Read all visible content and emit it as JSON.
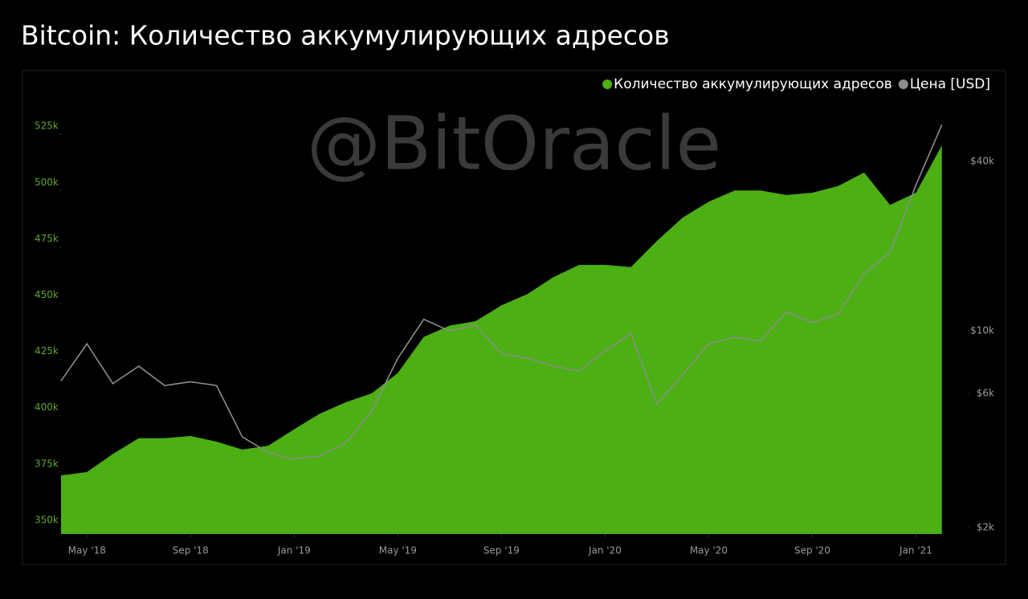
{
  "chart_data": {
    "type": "line",
    "title": "Bitcoin: Количество аккумулирующих адресов",
    "watermark": "@BitOracle",
    "x": [
      "2018-04",
      "2018-05",
      "2018-06",
      "2018-07",
      "2018-08",
      "2018-09",
      "2018-10",
      "2018-11",
      "2018-12",
      "2019-01",
      "2019-02",
      "2019-03",
      "2019-04",
      "2019-05",
      "2019-06",
      "2019-07",
      "2019-08",
      "2019-09",
      "2019-10",
      "2019-11",
      "2019-12",
      "2020-01",
      "2020-02",
      "2020-03",
      "2020-04",
      "2020-05",
      "2020-06",
      "2020-07",
      "2020-08",
      "2020-09",
      "2020-10",
      "2020-11",
      "2020-12",
      "2021-01",
      "2021-02"
    ],
    "xlim": [
      "2018-04",
      "2021-03"
    ],
    "xticks": [
      {
        "value": "2018-05",
        "label": "May '18"
      },
      {
        "value": "2018-09",
        "label": "Sep '18"
      },
      {
        "value": "2019-01",
        "label": "Jan '19"
      },
      {
        "value": "2019-05",
        "label": "May '19"
      },
      {
        "value": "2019-09",
        "label": "Sep '19"
      },
      {
        "value": "2020-01",
        "label": "Jan '20"
      },
      {
        "value": "2020-05",
        "label": "May '20"
      },
      {
        "value": "2020-09",
        "label": "Sep '20"
      },
      {
        "value": "2021-01",
        "label": "Jan '21"
      }
    ],
    "series": [
      {
        "name": "Количество аккумулирующих адресов",
        "type": "area",
        "color": "#4caf14",
        "values": [
          373500,
          375000,
          383000,
          390000,
          390000,
          391000,
          388500,
          385000,
          386700,
          394000,
          401000,
          406000,
          410000,
          419000,
          435000,
          440000,
          442000,
          449000,
          454000,
          461500,
          467000,
          467000,
          466000,
          477600,
          488000,
          495000,
          500000,
          500000,
          498000,
          499000,
          502000,
          508000,
          493600,
          499000,
          520000
        ]
      },
      {
        "name": "Цена [USD]",
        "type": "line",
        "axis": "y2",
        "color": "#8c8c8c",
        "values": [
          6650,
          9000,
          6500,
          7500,
          6400,
          6600,
          6400,
          4200,
          3700,
          3500,
          3600,
          4000,
          5200,
          8000,
          11000,
          10000,
          10500,
          8300,
          8000,
          7500,
          7200,
          8500,
          9800,
          5500,
          7000,
          9000,
          9500,
          9200,
          11700,
          10700,
          11500,
          16000,
          19000,
          33000,
          54000
        ]
      }
    ],
    "ylim": [
      347500,
      552500
    ],
    "yticks": [
      {
        "value": 350000,
        "label": "350k"
      },
      {
        "value": 375000,
        "label": "375k"
      },
      {
        "value": 400000,
        "label": "400k"
      },
      {
        "value": 425000,
        "label": "425k"
      },
      {
        "value": 450000,
        "label": "450k"
      },
      {
        "value": 475000,
        "label": "475k"
      },
      {
        "value": 500000,
        "label": "500k"
      },
      {
        "value": 525000,
        "label": "525k"
      }
    ],
    "y2lim": [
      1900,
      83000
    ],
    "y2log": true,
    "y2ticks": [
      {
        "value": 2000,
        "label": "$2k"
      },
      {
        "value": 6000,
        "label": "$6k"
      },
      {
        "value": 10000,
        "label": "$10k"
      },
      {
        "value": 40000,
        "label": "$40k"
      }
    ],
    "legend": "top-right"
  }
}
